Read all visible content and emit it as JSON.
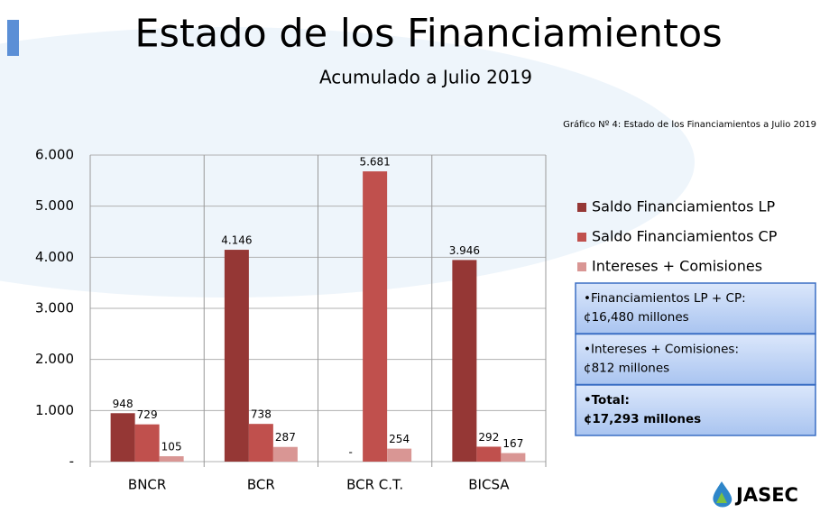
{
  "title": "Estado de los Financiamientos",
  "subtitle": "Acumulado a Julio 2019",
  "chart_data": {
    "type": "bar",
    "note": "Gráfico Nº 4: Estado de los Financiamientos a Julio 2019",
    "categories": [
      "BNCR",
      "BCR",
      "BCR C.T.",
      "BICSA"
    ],
    "series": [
      {
        "name": "Saldo Financiamientos LP",
        "color": "#953735",
        "values": [
          948,
          4146,
          0,
          3946
        ],
        "value_labels": [
          "948",
          "4.146",
          "-",
          "3.946"
        ]
      },
      {
        "name": "Saldo Financiamientos CP",
        "color": "#c0504d",
        "values": [
          729,
          738,
          5681,
          292
        ],
        "value_labels": [
          "729",
          "738",
          "5.681",
          "292"
        ]
      },
      {
        "name": "Intereses + Comisiones",
        "color": "#d99694",
        "values": [
          105,
          287,
          254,
          167
        ],
        "value_labels": [
          "105",
          "287",
          "254",
          "167"
        ]
      }
    ],
    "ylim": [
      0,
      6000
    ],
    "yticks": [
      {
        "value": 0,
        "label": "-"
      },
      {
        "value": 1000,
        "label": "1.000"
      },
      {
        "value": 2000,
        "label": "2.000"
      },
      {
        "value": 3000,
        "label": "3.000"
      },
      {
        "value": 4000,
        "label": "4.000"
      },
      {
        "value": 5000,
        "label": "5.000"
      },
      {
        "value": 6000,
        "label": "6.000"
      }
    ],
    "grid": true,
    "legend": "right"
  },
  "info_boxes": [
    {
      "lines": [
        "•Financiamientos LP + CP:",
        "¢16,480 millones"
      ]
    },
    {
      "lines": [
        "•Intereses + Comisiones:",
        "¢812 millones"
      ]
    },
    {
      "lines": [
        "•Total:",
        "¢17,293 millones"
      ]
    }
  ],
  "logo": "JASEC"
}
